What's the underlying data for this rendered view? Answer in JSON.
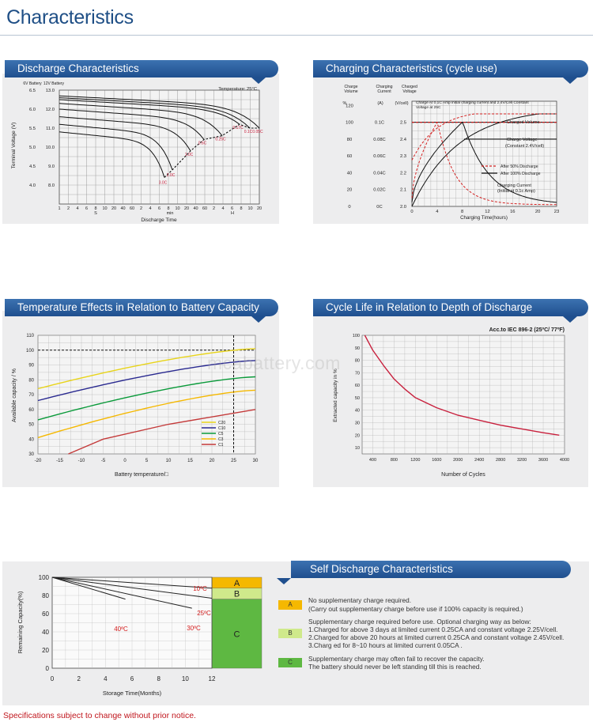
{
  "page_title": "Characteristics",
  "watermark": "mcabattery.com",
  "footer_note": "Specifications subject to change without prior notice.",
  "colors": {
    "banner": "#2b5f9e",
    "title": "#1f4f86",
    "crimson": "#c8203d",
    "red": "#d42020",
    "yellow": "#e8d41a",
    "green": "#0a9a3a",
    "orange": "#f5b800",
    "light_green": "#cfe98b",
    "mid_green": "#5eb842"
  },
  "panels": {
    "discharge": "Discharge Characteristics",
    "charging": "Charging Characteristics (cycle use)",
    "temperature": "Temperature Effects in Relation to Battery Capacity",
    "cycle": "Cycle Life in Relation to Depth of Discharge",
    "self_discharge": "Self Discharge Characteristics"
  },
  "chart_data": [
    {
      "id": "discharge",
      "type": "line",
      "title": "Discharge Characteristics",
      "note": "Temperature: 25°C",
      "ylabel": "Terminal Voltage (V)",
      "xlabel": "Discharge Time",
      "y6_header": "6V Battery",
      "y12_header": "12V Battery",
      "y6_ticks": [
        "6.5",
        "6.0",
        "5.5",
        "5.0",
        "4.5",
        "4.0"
      ],
      "y12_ticks": [
        "13.0",
        "12.0",
        "11.0",
        "10.0",
        "9.0",
        "8.0"
      ],
      "ylim": [
        7,
        13
      ],
      "x_ticks": [
        "1",
        "2",
        "4",
        "6",
        "8",
        "10",
        "20",
        "40",
        "60",
        "2",
        "4",
        "6",
        "8",
        "10",
        "20",
        "40",
        "60",
        "2",
        "4",
        "6",
        "8",
        "10",
        "20"
      ],
      "x_unit_labels": [
        "S",
        "min",
        "H"
      ],
      "curve_labels": [
        "3.0C",
        "2.0C",
        "1.0C",
        "0.6C",
        "0.25C",
        "0.17C",
        "0.1C",
        "0.05C"
      ],
      "cutoff_voltages": [
        8.4,
        8.8,
        9.8,
        10.4,
        10.6,
        11.2,
        11.0,
        11.0
      ],
      "start_voltages": [
        10.8,
        11.2,
        11.6,
        12.0,
        12.3,
        12.5,
        12.6,
        12.7
      ]
    },
    {
      "id": "charging",
      "type": "line",
      "title": "Charging Characteristics (cycle use)",
      "axis_headers": [
        "Charge Volume",
        "Charging Current",
        "Charged Voltage"
      ],
      "axis_units": [
        "%",
        "(A)",
        "(V/cell)"
      ],
      "volume_ticks": [
        "120",
        "100",
        "80",
        "60",
        "40",
        "20",
        "0"
      ],
      "current_ticks": [
        "0.1C",
        "0.08C",
        "0.06C",
        "0.04C",
        "0.02C",
        "0C"
      ],
      "voltage_ticks": [
        "2.5",
        "2.4",
        "2.3",
        "2.2",
        "2.1",
        "2.0"
      ],
      "x": [
        0,
        4,
        8,
        12,
        16,
        20,
        23
      ],
      "x_ticks": [
        "0",
        "4",
        "8",
        "12",
        "16",
        "20",
        "23"
      ],
      "xlabel": "Charging Time(hours)",
      "condition": "Charge At 0.1C Amp initial charging current and 2.4V/Cell Constant Voltage at 25C",
      "annotations": [
        "Charged Volume",
        "Charge Voltage (Constant 2.4V/cell)",
        "Charging Current (Initial at 0.1c Amp)"
      ],
      "legend": [
        "After 50% Discharge",
        "After 100% Discharge"
      ]
    },
    {
      "id": "temperature",
      "type": "line",
      "title": "Temperature Effects in Relation to Battery Capacity",
      "xlabel": "Battery temperature/□",
      "ylabel": "Available capacity / %",
      "x_ticks": [
        "-20",
        "-15",
        "-10",
        "-5",
        "0",
        "5",
        "10",
        "15",
        "20",
        "25",
        "30"
      ],
      "y_ticks": [
        "110",
        "100",
        "90",
        "80",
        "70",
        "60",
        "50",
        "40",
        "30"
      ],
      "xlim": [
        -20,
        30
      ],
      "ylim": [
        30,
        110
      ],
      "series": [
        {
          "name": "C20",
          "x": [
            -20,
            30
          ],
          "y": [
            74,
            101
          ]
        },
        {
          "name": "C10",
          "x": [
            -20,
            30
          ],
          "y": [
            66,
            93
          ]
        },
        {
          "name": "C5",
          "x": [
            -20,
            30
          ],
          "y": [
            53,
            82
          ]
        },
        {
          "name": "C3",
          "x": [
            -20,
            30
          ],
          "y": [
            41,
            73
          ]
        },
        {
          "name": "C1",
          "x": [
            -13,
            -5,
            10,
            30
          ],
          "y": [
            30,
            40,
            50,
            60
          ]
        }
      ],
      "reference": {
        "y": 100,
        "x": 25
      }
    },
    {
      "id": "cycle",
      "type": "line",
      "title": "Cycle Life in Relation to Depth of Discharge",
      "note": "Acc.to IEC 896-2 (25ºC/ 77ºF)",
      "xlabel": "Number of Cycles",
      "ylabel": "Extracted capacity in %",
      "x_ticks": [
        "400",
        "800",
        "1200",
        "1600",
        "2000",
        "2400",
        "2800",
        "3200",
        "3600",
        "4000"
      ],
      "y_ticks": [
        "100",
        "90",
        "80",
        "70",
        "60",
        "50",
        "40",
        "30",
        "20",
        "10"
      ],
      "xlim": [
        200,
        4000
      ],
      "ylim": [
        5,
        100
      ],
      "series": [
        {
          "name": "Extracted capacity",
          "x": [
            250,
            400,
            600,
            800,
            1000,
            1200,
            1600,
            2000,
            2400,
            2800,
            3200,
            3600,
            3900
          ],
          "y": [
            100,
            88,
            76,
            65,
            57,
            50,
            42,
            36,
            32,
            28,
            25,
            22,
            20
          ]
        }
      ]
    },
    {
      "id": "self_discharge",
      "type": "line",
      "title": "Self Discharge Characteristics",
      "xlabel": "Storage Time(Months)",
      "ylabel": "Remaining Capacity(%)",
      "x_ticks": [
        "0",
        "2",
        "4",
        "6",
        "8",
        "10",
        "12"
      ],
      "y_ticks": [
        "100",
        "80",
        "60",
        "40",
        "20",
        "0"
      ],
      "xlim": [
        0,
        12
      ],
      "ylim": [
        0,
        100
      ],
      "series": [
        {
          "name": "10ºC",
          "x": [
            0,
            12
          ],
          "y": [
            100,
            88
          ]
        },
        {
          "name": "25ºC",
          "x": [
            0,
            12
          ],
          "y": [
            100,
            77
          ]
        },
        {
          "name": "30ºC",
          "x": [
            0,
            10.5
          ],
          "y": [
            100,
            66
          ]
        },
        {
          "name": "40ºC",
          "x": [
            0,
            5.5
          ],
          "y": [
            100,
            76
          ]
        }
      ],
      "zones": [
        {
          "label": "A",
          "from": 100,
          "to": 88
        },
        {
          "label": "B",
          "from": 88,
          "to": 76
        },
        {
          "label": "C",
          "from": 76,
          "to": 0
        }
      ]
    }
  ],
  "self_discharge_legend": [
    {
      "key": "A",
      "lines": [
        "No supplementary charge required.",
        "(Carry out supplementary charge before use if 100% capacity is required.)"
      ]
    },
    {
      "key": "B",
      "lines": [
        "Supplementary charge required before use. Optional charging way as below:",
        "1.Charged for above 3 days at limited current 0.25CA and constant voltage 2.25V/cell.",
        "2.Charged for above 20 hours at limited current 0.25CA and constant voltage 2.45V/cell.",
        "3.Charg ed for 8~10 hours at limited current 0.05CA ."
      ]
    },
    {
      "key": "C",
      "lines": [
        "Supplementary charge may often fail to recover the capacity.",
        "The battery should never be  left standing till this is reached."
      ]
    }
  ]
}
